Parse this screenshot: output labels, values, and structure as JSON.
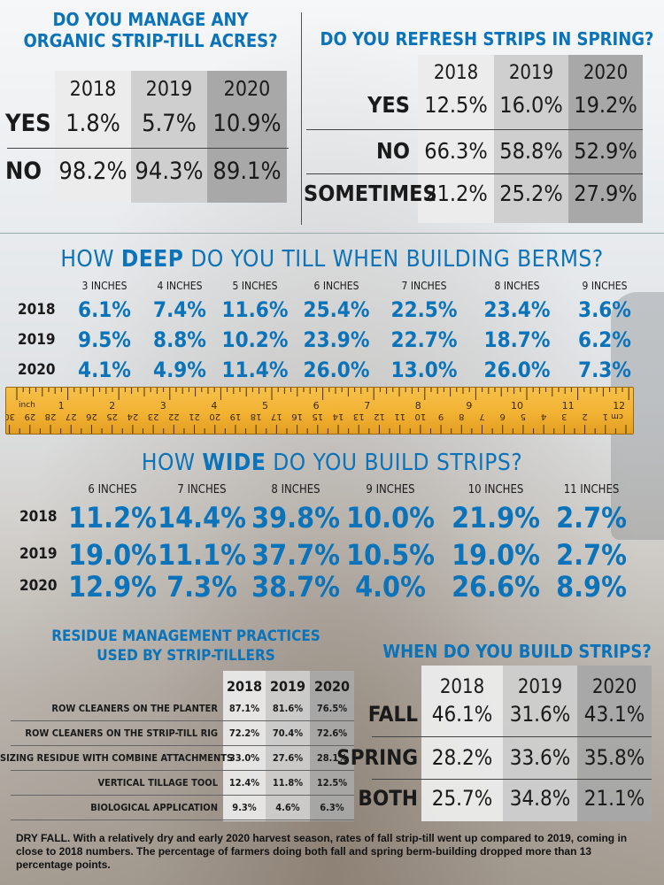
{
  "colors": {
    "blue": "#0a73b9",
    "gray_light": "#e6e6e6",
    "gray_mid": "#c9c9c9",
    "gray_dark": "#999999",
    "ruler": "#f2b233"
  },
  "organic": {
    "title_line1": "DO YOU MANAGE ANY",
    "title_line2": "ORGANIC STRIP-TILL ACRES?",
    "years": [
      "2018",
      "2019",
      "2020"
    ],
    "rows": [
      {
        "label": "YES",
        "values": [
          "1.8%",
          "5.7%",
          "10.9%"
        ]
      },
      {
        "label": "NO",
        "values": [
          "98.2%",
          "94.3%",
          "89.1%"
        ]
      }
    ]
  },
  "refresh": {
    "title": "DO YOU REFRESH STRIPS IN SPRING?",
    "years": [
      "2018",
      "2019",
      "2020"
    ],
    "rows": [
      {
        "label": "YES",
        "values": [
          "12.5%",
          "16.0%",
          "19.2%"
        ]
      },
      {
        "label": "NO",
        "values": [
          "66.3%",
          "58.8%",
          "52.9%"
        ]
      },
      {
        "label": "SOMETIMES",
        "values": [
          "21.2%",
          "25.2%",
          "27.9%"
        ]
      }
    ]
  },
  "deep": {
    "title_pre": "HOW ",
    "title_em": "DEEP",
    "title_post": " DO YOU TILL WHEN BUILDING BERMS?",
    "columns": [
      "3 INCHES",
      "4 INCHES",
      "5 INCHES",
      "6 INCHES",
      "7 INCHES",
      "8 INCHES",
      "9 INCHES"
    ],
    "rows": [
      {
        "year": "2018",
        "values": [
          "6.1%",
          "7.4%",
          "11.6%",
          "25.4%",
          "22.5%",
          "23.4%",
          "3.6%"
        ]
      },
      {
        "year": "2019",
        "values": [
          "9.5%",
          "8.8%",
          "10.2%",
          "23.9%",
          "22.7%",
          "18.7%",
          "6.2%"
        ]
      },
      {
        "year": "2020",
        "values": [
          "4.1%",
          "4.9%",
          "11.4%",
          "26.0%",
          "13.0%",
          "26.0%",
          "7.3%"
        ]
      }
    ]
  },
  "ruler": {
    "unit_top": "inch",
    "top_numbers": [
      "1",
      "2",
      "3",
      "4",
      "5",
      "6",
      "7",
      "8",
      "9",
      "10",
      "11",
      "12"
    ],
    "unit_bottom": "cm",
    "bottom_numbers": [
      "1",
      "2",
      "3",
      "4",
      "5",
      "6",
      "7",
      "8",
      "9",
      "10",
      "11",
      "12",
      "13",
      "14",
      "15",
      "16",
      "17",
      "18",
      "19",
      "20",
      "21",
      "22",
      "23",
      "24",
      "25",
      "26",
      "27",
      "28",
      "29",
      "30"
    ]
  },
  "wide": {
    "title_pre": "HOW ",
    "title_em": "WIDE",
    "title_post": " DO YOU BUILD STRIPS?",
    "columns": [
      "6 INCHES",
      "7 INCHES",
      "8 INCHES",
      "9 INCHES",
      "10 INCHES",
      "11 INCHES"
    ],
    "rows": [
      {
        "year": "2018",
        "values": [
          "11.2%",
          "14.4%",
          "39.8%",
          "10.0%",
          "21.9%",
          "2.7%"
        ]
      },
      {
        "year": "2019",
        "values": [
          "19.0%",
          "11.1%",
          "37.7%",
          "10.5%",
          "19.0%",
          "2.7%"
        ]
      },
      {
        "year": "2020",
        "values": [
          "12.9%",
          "7.3%",
          "38.7%",
          "4.0%",
          "26.6%",
          "8.9%"
        ]
      }
    ]
  },
  "residue": {
    "title_line1": "RESIDUE MANAGEMENT PRACTICES",
    "title_line2": "USED BY STRIP-TILLERS",
    "years": [
      "2018",
      "2019",
      "2020"
    ],
    "rows": [
      {
        "label": "ROW CLEANERS ON THE PLANTER",
        "values": [
          "87.1%",
          "81.6%",
          "76.5%"
        ]
      },
      {
        "label": "ROW CLEANERS ON THE STRIP-TILL RIG",
        "values": [
          "72.2%",
          "70.4%",
          "72.6%"
        ]
      },
      {
        "label": "SIZING RESIDUE WITH COMBINE ATTACHMENTS",
        "values": [
          "33.0%",
          "27.6%",
          "28.1%"
        ]
      },
      {
        "label": "VERTICAL TILLAGE TOOL",
        "values": [
          "12.4%",
          "11.8%",
          "12.5%"
        ]
      },
      {
        "label": "BIOLOGICAL APPLICATION",
        "values": [
          "9.3%",
          "4.6%",
          "6.3%"
        ]
      }
    ]
  },
  "when": {
    "title": "WHEN DO YOU BUILD STRIPS?",
    "years": [
      "2018",
      "2019",
      "2020"
    ],
    "rows": [
      {
        "label": "FALL",
        "values": [
          "46.1%",
          "31.6%",
          "43.1%"
        ]
      },
      {
        "label": "SPRING",
        "values": [
          "28.2%",
          "33.6%",
          "35.8%"
        ]
      },
      {
        "label": "BOTH",
        "values": [
          "25.7%",
          "34.8%",
          "21.1%"
        ]
      }
    ]
  },
  "caption": {
    "lead": "DRY FALL.",
    "text": " With a relatively dry and early 2020 harvest season, rates of fall strip-till went up compared to 2019, coming in close to 2018 numbers. The percentage of farmers doing both fall and spring berm-building dropped more than 13 percentage points."
  },
  "chart_data": [
    {
      "type": "table",
      "title": "DO YOU MANAGE ANY ORGANIC STRIP-TILL ACRES?",
      "categories": [
        "2018",
        "2019",
        "2020"
      ],
      "series": [
        {
          "name": "YES",
          "values": [
            1.8,
            5.7,
            10.9
          ]
        },
        {
          "name": "NO",
          "values": [
            98.2,
            94.3,
            89.1
          ]
        }
      ]
    },
    {
      "type": "table",
      "title": "DO YOU REFRESH STRIPS IN SPRING?",
      "categories": [
        "2018",
        "2019",
        "2020"
      ],
      "series": [
        {
          "name": "YES",
          "values": [
            12.5,
            16.0,
            19.2
          ]
        },
        {
          "name": "NO",
          "values": [
            66.3,
            58.8,
            52.9
          ]
        },
        {
          "name": "SOMETIMES",
          "values": [
            21.2,
            25.2,
            27.9
          ]
        }
      ]
    },
    {
      "type": "table",
      "title": "HOW DEEP DO YOU TILL WHEN BUILDING BERMS?",
      "categories": [
        "3 INCHES",
        "4 INCHES",
        "5 INCHES",
        "6 INCHES",
        "7 INCHES",
        "8 INCHES",
        "9 INCHES"
      ],
      "series": [
        {
          "name": "2018",
          "values": [
            6.1,
            7.4,
            11.6,
            25.4,
            22.5,
            23.4,
            3.6
          ]
        },
        {
          "name": "2019",
          "values": [
            9.5,
            8.8,
            10.2,
            23.9,
            22.7,
            18.7,
            6.2
          ]
        },
        {
          "name": "2020",
          "values": [
            4.1,
            4.9,
            11.4,
            26.0,
            13.0,
            26.0,
            7.3
          ]
        }
      ]
    },
    {
      "type": "table",
      "title": "HOW WIDE DO YOU BUILD STRIPS?",
      "categories": [
        "6 INCHES",
        "7 INCHES",
        "8 INCHES",
        "9 INCHES",
        "10 INCHES",
        "11 INCHES"
      ],
      "series": [
        {
          "name": "2018",
          "values": [
            11.2,
            14.4,
            39.8,
            10.0,
            21.9,
            2.7
          ]
        },
        {
          "name": "2019",
          "values": [
            19.0,
            11.1,
            37.7,
            10.5,
            19.0,
            2.7
          ]
        },
        {
          "name": "2020",
          "values": [
            12.9,
            7.3,
            38.7,
            4.0,
            26.6,
            8.9
          ]
        }
      ]
    },
    {
      "type": "table",
      "title": "RESIDUE MANAGEMENT PRACTICES USED BY STRIP-TILLERS",
      "categories": [
        "2018",
        "2019",
        "2020"
      ],
      "series": [
        {
          "name": "ROW CLEANERS ON THE PLANTER",
          "values": [
            87.1,
            81.6,
            76.5
          ]
        },
        {
          "name": "ROW CLEANERS ON THE STRIP-TILL RIG",
          "values": [
            72.2,
            70.4,
            72.6
          ]
        },
        {
          "name": "SIZING RESIDUE WITH COMBINE ATTACHMENTS",
          "values": [
            33.0,
            27.6,
            28.1
          ]
        },
        {
          "name": "VERTICAL TILLAGE TOOL",
          "values": [
            12.4,
            11.8,
            12.5
          ]
        },
        {
          "name": "BIOLOGICAL APPLICATION",
          "values": [
            9.3,
            4.6,
            6.3
          ]
        }
      ]
    },
    {
      "type": "table",
      "title": "WHEN DO YOU BUILD STRIPS?",
      "categories": [
        "2018",
        "2019",
        "2020"
      ],
      "series": [
        {
          "name": "FALL",
          "values": [
            46.1,
            31.6,
            43.1
          ]
        },
        {
          "name": "SPRING",
          "values": [
            28.2,
            33.6,
            35.8
          ]
        },
        {
          "name": "BOTH",
          "values": [
            25.7,
            34.8,
            21.1
          ]
        }
      ]
    }
  ]
}
